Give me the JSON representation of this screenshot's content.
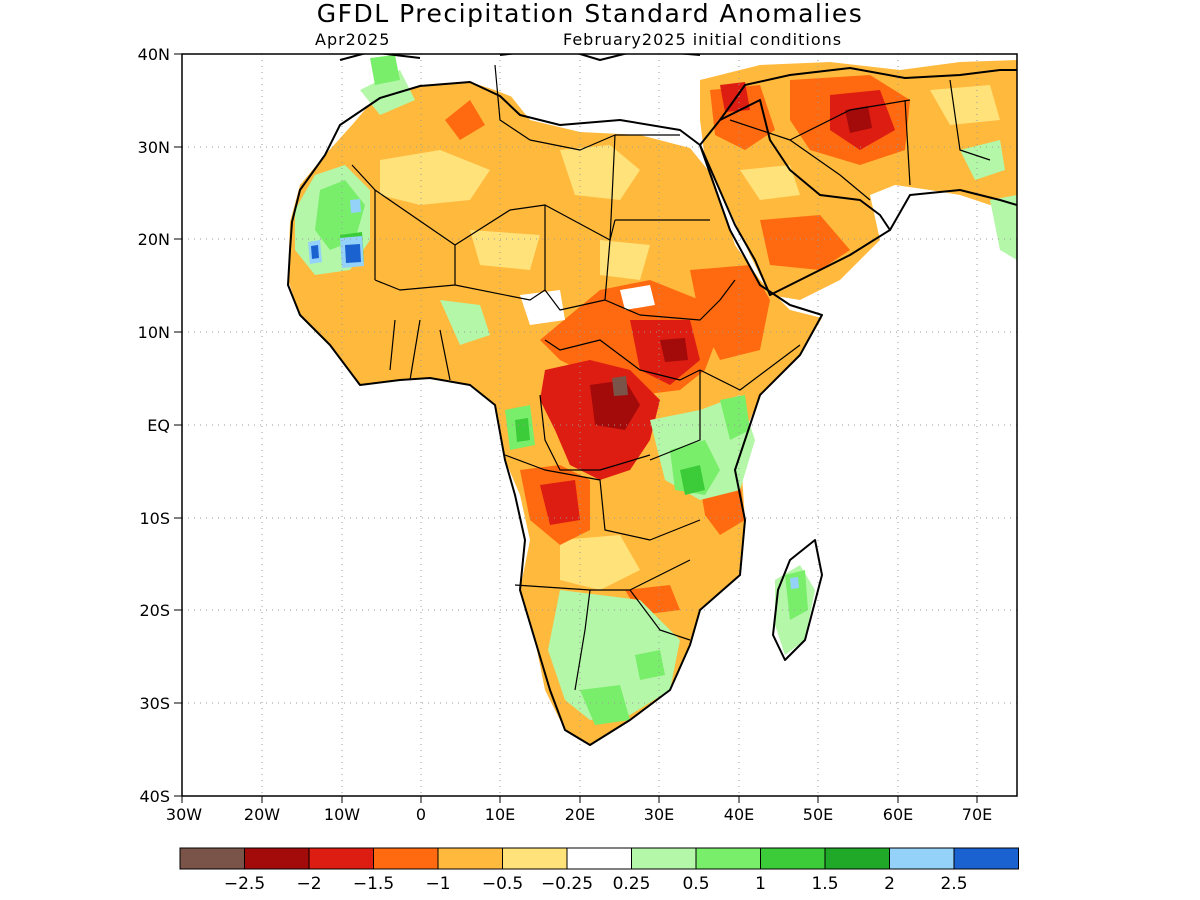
{
  "title": "GFDL Precipitation Standard Anomalies",
  "valid_month": "Apr2025",
  "init_label": "February2025 initial conditions",
  "map": {
    "lat_labels": [
      "40N",
      "30N",
      "20N",
      "10N",
      "EQ",
      "10S",
      "20S",
      "30S",
      "40S"
    ],
    "lon_labels": [
      "30W",
      "20W",
      "10W",
      "0",
      "10E",
      "20E",
      "30E",
      "40E",
      "50E",
      "60E",
      "70E"
    ],
    "lat_range": [
      -40,
      40
    ],
    "lon_range": [
      -30,
      75
    ],
    "grid": true
  },
  "colorbar": {
    "labels": [
      "−2.5",
      "−2",
      "−1.5",
      "−1",
      "−0.5",
      "−0.25",
      "0.25",
      "0.5",
      "1",
      "1.5",
      "2",
      "2.5"
    ],
    "colors": [
      "#7a5448",
      "#a30a0a",
      "#dd1c12",
      "#ff6a10",
      "#ffb93c",
      "#ffe27a",
      "#ffffff",
      "#b4f7a8",
      "#78ee6a",
      "#3ccc3a",
      "#20a828",
      "#94d2fa",
      "#1a62d0"
    ]
  },
  "chart_data": {
    "type": "heatmap",
    "title": "GFDL Precipitation Standard Anomalies",
    "subtitle": "Apr2025 / February2025 initial conditions",
    "variable": "precipitation standardized anomaly",
    "region": "Africa and Arabian Peninsula",
    "lat_range": [
      -40,
      40
    ],
    "lon_range": [
      -30,
      75
    ],
    "levels": [
      -2.5,
      -2,
      -1.5,
      -1,
      -0.5,
      -0.25,
      0.25,
      0.5,
      1,
      1.5,
      2,
      2.5
    ],
    "notable_features": [
      {
        "region": "Central Africa / Congo Basin",
        "anomaly_range": [
          -2.5,
          -1.5
        ]
      },
      {
        "region": "Southern Arabian Peninsula / Iran",
        "anomaly_range": [
          -2,
          -1
        ]
      },
      {
        "region": "South Sudan / Ethiopia",
        "anomaly_range": [
          -2,
          -1
        ]
      },
      {
        "region": "Western Sahara / Mauritania",
        "anomaly_range": [
          1,
          2.5
        ]
      },
      {
        "region": "East Africa (Kenya, Tanzania)",
        "anomaly_range": [
          0.5,
          1.5
        ]
      },
      {
        "region": "Madagascar",
        "anomaly_range": [
          0.5,
          1.5
        ]
      },
      {
        "region": "South Africa",
        "anomaly_range": [
          0.5,
          1
        ]
      }
    ]
  }
}
